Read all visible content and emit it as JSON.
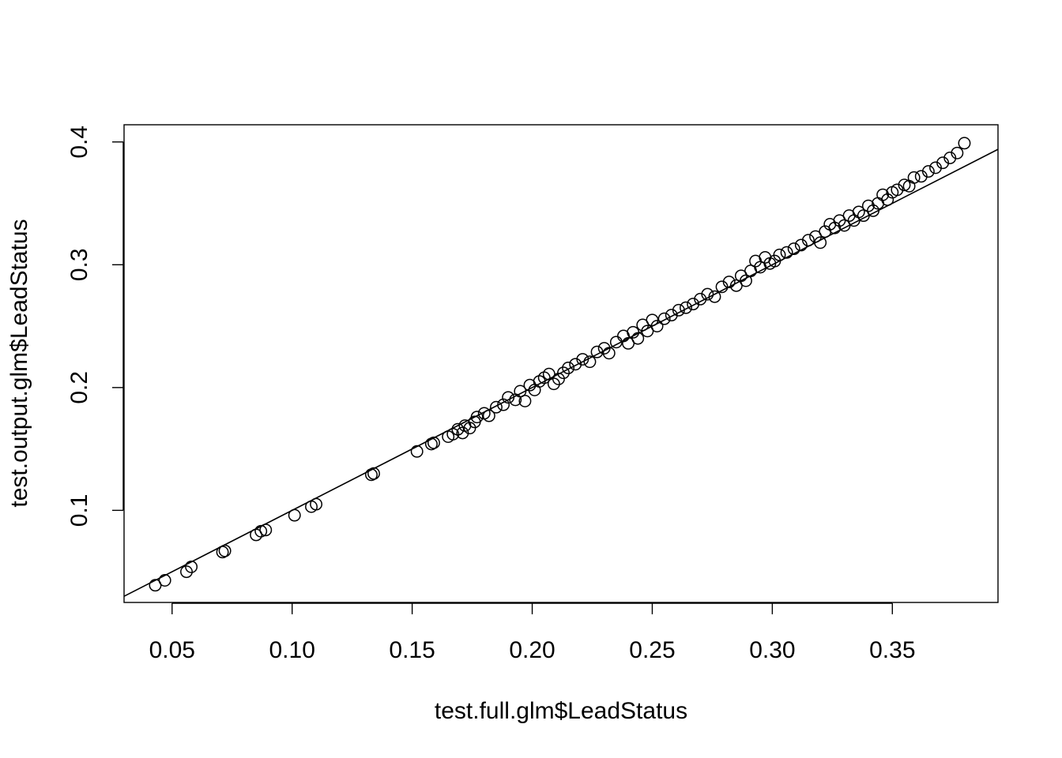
{
  "chart_data": {
    "type": "scatter",
    "title": "",
    "xlabel": "test.full.glm$LeadStatus",
    "ylabel": "test.output.glm$LeadStatus",
    "xlim": [
      0.03,
      0.394
    ],
    "ylim": [
      0.025,
      0.414
    ],
    "x_ticks": [
      0.05,
      0.1,
      0.15,
      0.2,
      0.25,
      0.3,
      0.35
    ],
    "x_tick_labels": [
      "0.05",
      "0.10",
      "0.15",
      "0.20",
      "0.25",
      "0.30",
      "0.35"
    ],
    "y_ticks": [
      0.1,
      0.2,
      0.3,
      0.4
    ],
    "y_tick_labels": [
      "0.1",
      "0.2",
      "0.3",
      "0.4"
    ],
    "grid": false,
    "marker": "open-circle",
    "reference_line": {
      "type": "identity",
      "slope": 1,
      "intercept": 0
    },
    "series": [
      {
        "points": [
          [
            0.043,
            0.039
          ],
          [
            0.047,
            0.043
          ],
          [
            0.056,
            0.05
          ],
          [
            0.058,
            0.054
          ],
          [
            0.071,
            0.066
          ],
          [
            0.072,
            0.067
          ],
          [
            0.085,
            0.08
          ],
          [
            0.087,
            0.083
          ],
          [
            0.089,
            0.084
          ],
          [
            0.101,
            0.096
          ],
          [
            0.108,
            0.103
          ],
          [
            0.11,
            0.105
          ],
          [
            0.133,
            0.129
          ],
          [
            0.134,
            0.13
          ],
          [
            0.152,
            0.148
          ],
          [
            0.158,
            0.154
          ],
          [
            0.159,
            0.155
          ],
          [
            0.165,
            0.16
          ],
          [
            0.167,
            0.162
          ],
          [
            0.169,
            0.166
          ],
          [
            0.171,
            0.163
          ],
          [
            0.172,
            0.169
          ],
          [
            0.174,
            0.167
          ],
          [
            0.176,
            0.172
          ],
          [
            0.177,
            0.176
          ],
          [
            0.18,
            0.179
          ],
          [
            0.182,
            0.177
          ],
          [
            0.185,
            0.184
          ],
          [
            0.188,
            0.186
          ],
          [
            0.19,
            0.192
          ],
          [
            0.193,
            0.19
          ],
          [
            0.195,
            0.197
          ],
          [
            0.197,
            0.189
          ],
          [
            0.199,
            0.202
          ],
          [
            0.201,
            0.198
          ],
          [
            0.203,
            0.205
          ],
          [
            0.205,
            0.208
          ],
          [
            0.207,
            0.211
          ],
          [
            0.209,
            0.203
          ],
          [
            0.211,
            0.207
          ],
          [
            0.213,
            0.212
          ],
          [
            0.215,
            0.216
          ],
          [
            0.218,
            0.219
          ],
          [
            0.221,
            0.223
          ],
          [
            0.224,
            0.221
          ],
          [
            0.227,
            0.229
          ],
          [
            0.23,
            0.232
          ],
          [
            0.232,
            0.228
          ],
          [
            0.235,
            0.237
          ],
          [
            0.238,
            0.242
          ],
          [
            0.24,
            0.236
          ],
          [
            0.242,
            0.245
          ],
          [
            0.244,
            0.24
          ],
          [
            0.246,
            0.251
          ],
          [
            0.248,
            0.246
          ],
          [
            0.25,
            0.255
          ],
          [
            0.252,
            0.25
          ],
          [
            0.255,
            0.256
          ],
          [
            0.258,
            0.259
          ],
          [
            0.261,
            0.263
          ],
          [
            0.264,
            0.265
          ],
          [
            0.267,
            0.268
          ],
          [
            0.27,
            0.272
          ],
          [
            0.273,
            0.276
          ],
          [
            0.276,
            0.274
          ],
          [
            0.279,
            0.282
          ],
          [
            0.282,
            0.286
          ],
          [
            0.285,
            0.283
          ],
          [
            0.287,
            0.291
          ],
          [
            0.289,
            0.287
          ],
          [
            0.291,
            0.295
          ],
          [
            0.293,
            0.303
          ],
          [
            0.295,
            0.298
          ],
          [
            0.297,
            0.306
          ],
          [
            0.299,
            0.301
          ],
          [
            0.301,
            0.303
          ],
          [
            0.303,
            0.308
          ],
          [
            0.306,
            0.31
          ],
          [
            0.309,
            0.313
          ],
          [
            0.312,
            0.316
          ],
          [
            0.315,
            0.32
          ],
          [
            0.318,
            0.323
          ],
          [
            0.32,
            0.318
          ],
          [
            0.322,
            0.327
          ],
          [
            0.324,
            0.333
          ],
          [
            0.326,
            0.33
          ],
          [
            0.328,
            0.336
          ],
          [
            0.33,
            0.332
          ],
          [
            0.332,
            0.34
          ],
          [
            0.334,
            0.336
          ],
          [
            0.336,
            0.343
          ],
          [
            0.338,
            0.34
          ],
          [
            0.34,
            0.348
          ],
          [
            0.342,
            0.344
          ],
          [
            0.344,
            0.35
          ],
          [
            0.346,
            0.357
          ],
          [
            0.348,
            0.353
          ],
          [
            0.35,
            0.359
          ],
          [
            0.352,
            0.361
          ],
          [
            0.355,
            0.365
          ],
          [
            0.357,
            0.364
          ],
          [
            0.359,
            0.371
          ],
          [
            0.362,
            0.372
          ],
          [
            0.365,
            0.376
          ],
          [
            0.368,
            0.379
          ],
          [
            0.371,
            0.383
          ],
          [
            0.374,
            0.387
          ],
          [
            0.377,
            0.391
          ],
          [
            0.38,
            0.399
          ]
        ]
      }
    ]
  }
}
